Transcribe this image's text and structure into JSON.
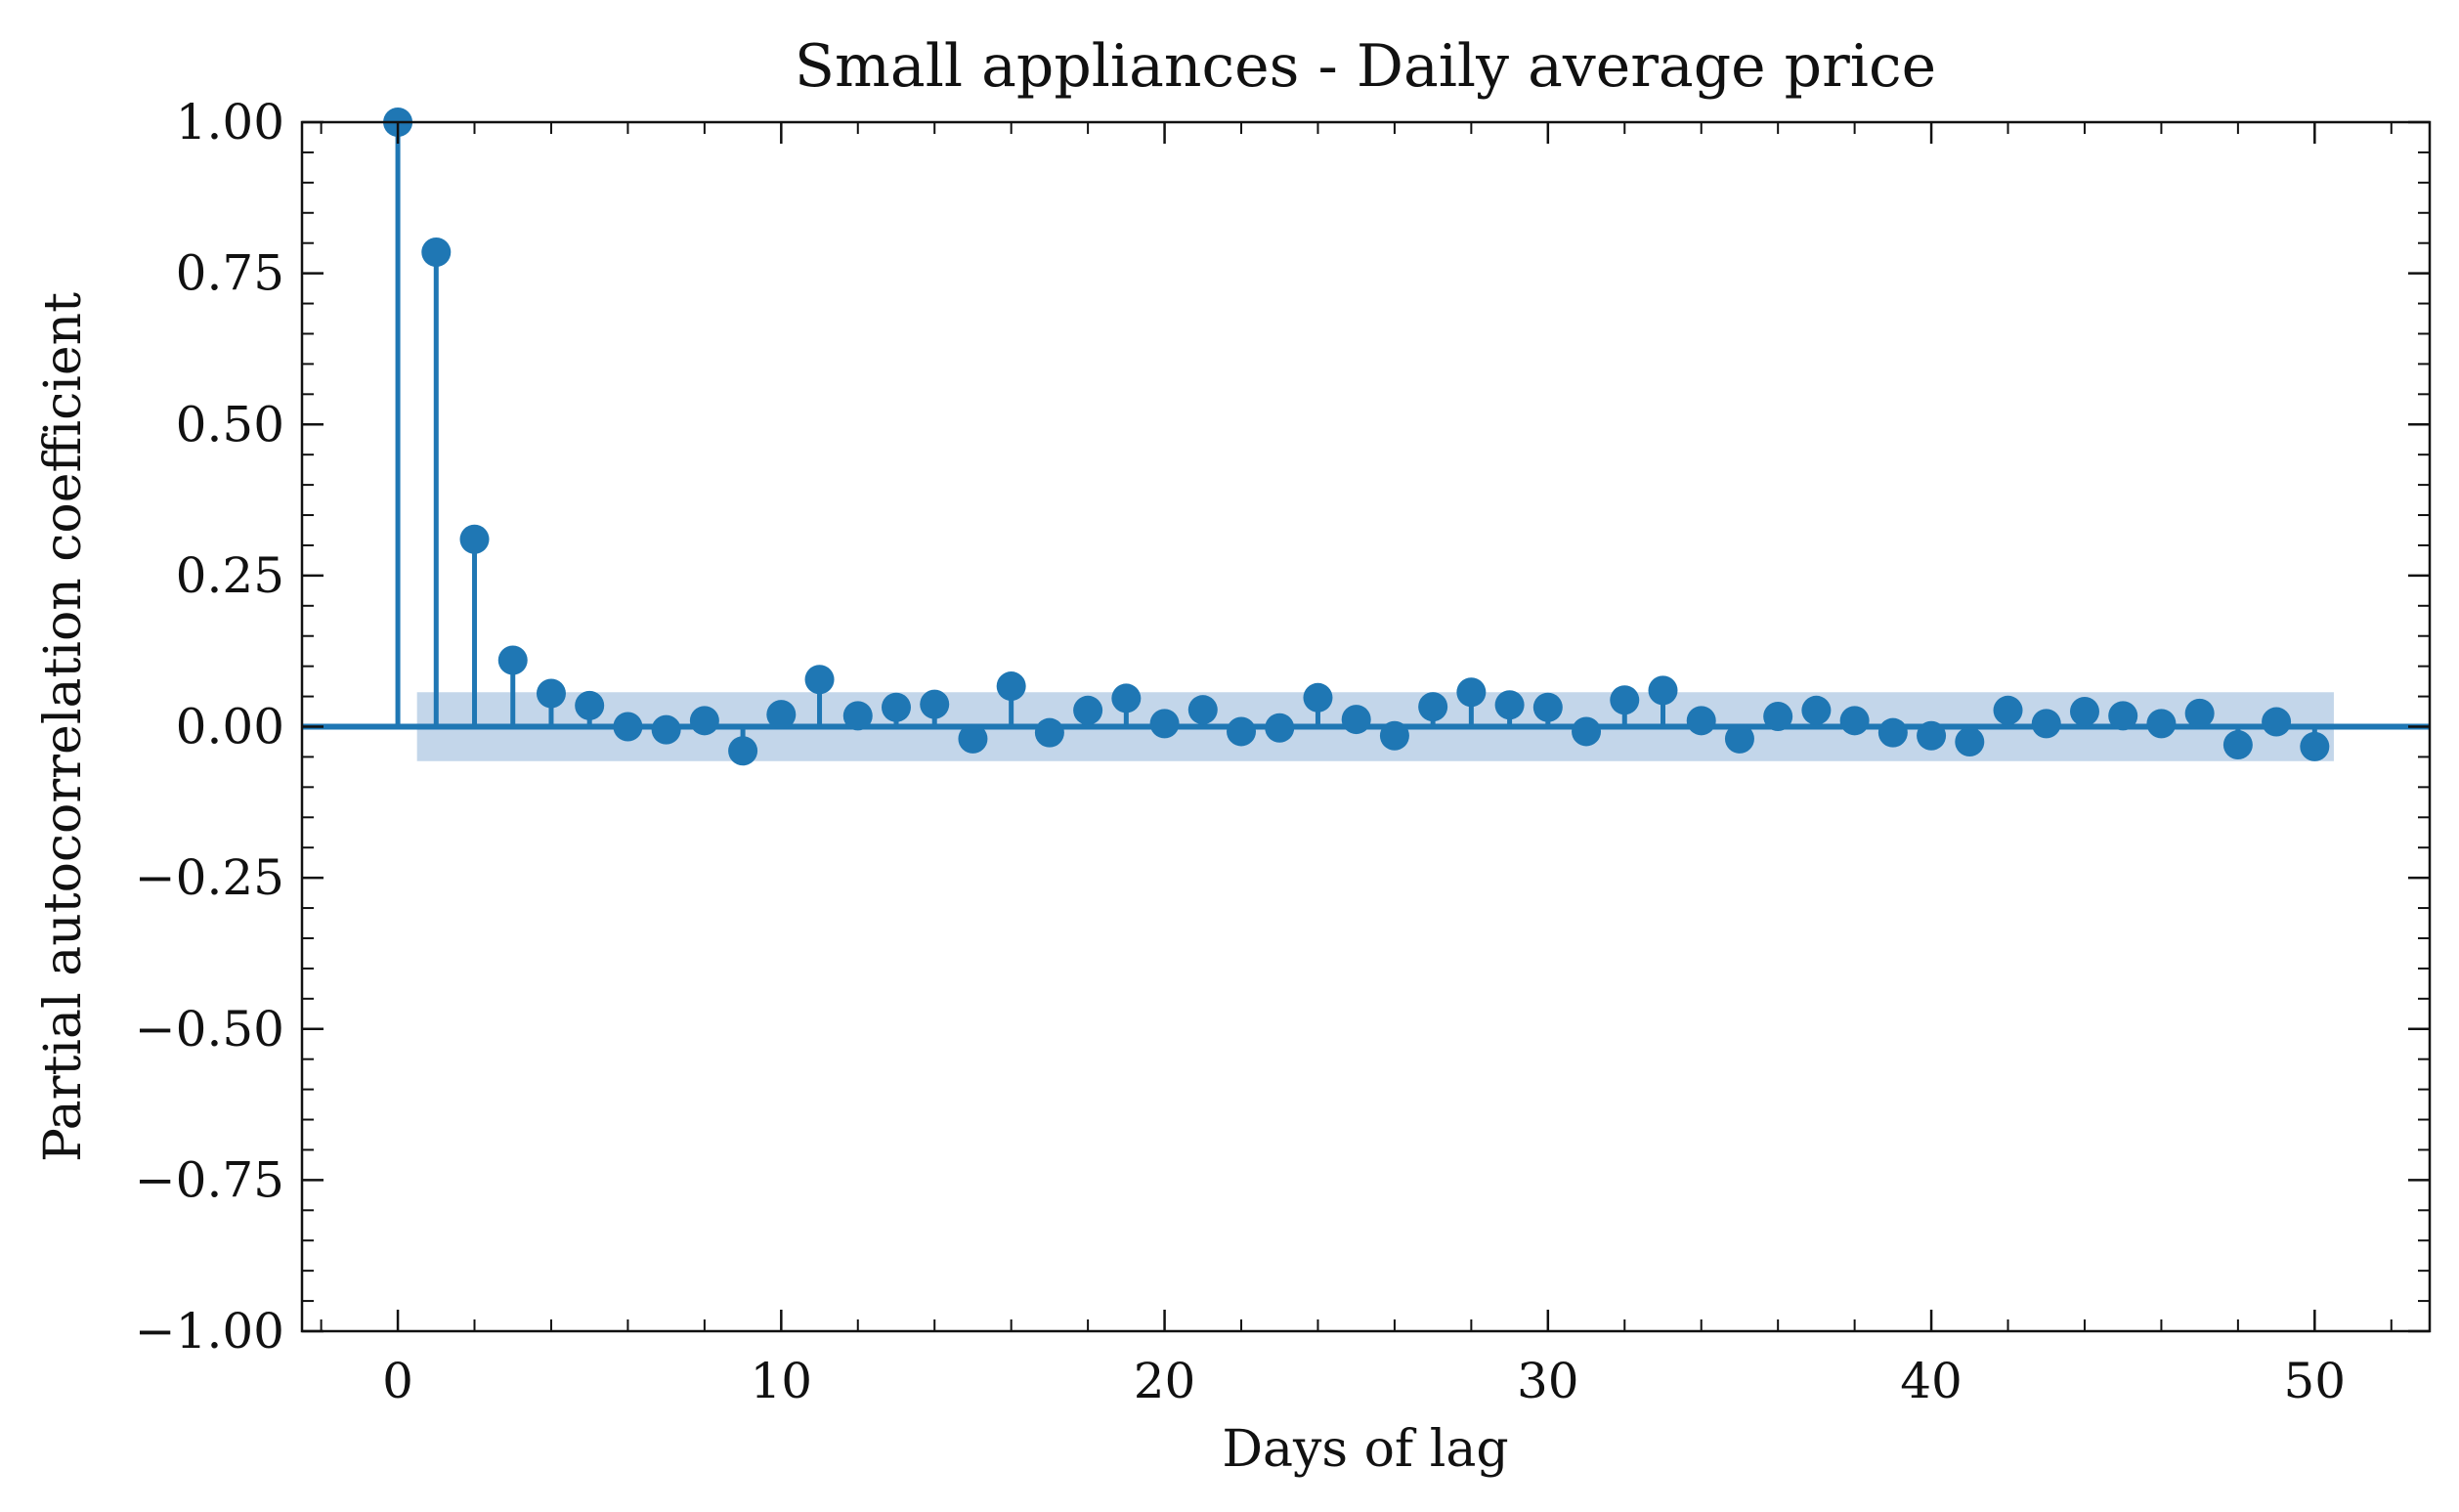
{
  "chart_data": {
    "type": "scatter",
    "subtype": "stem",
    "title": "Small appliances - Daily average price",
    "xlabel": "Days of lag",
    "ylabel": "Partial autocorrelation coefficient",
    "xlim": [
      -2.5,
      53
    ],
    "ylim": [
      -1.0,
      1.0
    ],
    "x_ticks": [
      0,
      10,
      20,
      30,
      40,
      50
    ],
    "x_tick_labels": [
      "0",
      "10",
      "20",
      "30",
      "40",
      "50"
    ],
    "y_ticks": [
      -1.0,
      -0.75,
      -0.5,
      -0.25,
      0.0,
      0.25,
      0.5,
      0.75,
      1.0
    ],
    "y_tick_labels": [
      "−1.00",
      "−0.75",
      "−0.50",
      "−0.25",
      "0.00",
      "0.25",
      "0.50",
      "0.75",
      "1.00"
    ],
    "grid": false,
    "confidence_band": {
      "x_range": [
        0.5,
        50.5
      ],
      "lower": -0.057,
      "upper": 0.057
    },
    "series": [
      {
        "x": [
          0,
          1,
          2,
          3,
          4,
          5,
          6,
          7,
          8,
          9,
          10,
          11,
          12,
          13,
          14,
          15,
          16,
          17,
          18,
          19,
          20,
          21,
          22,
          23,
          24,
          25,
          26,
          27,
          28,
          29,
          30,
          31,
          32,
          33,
          34,
          35,
          36,
          37,
          38,
          39,
          40,
          41,
          42,
          43,
          44,
          45,
          46,
          47,
          48,
          49,
          50
        ],
        "values": [
          1.0,
          0.785,
          0.31,
          0.11,
          0.055,
          0.035,
          0.0,
          -0.005,
          0.01,
          -0.04,
          0.02,
          0.078,
          0.018,
          0.032,
          0.037,
          -0.02,
          0.067,
          -0.01,
          0.027,
          0.047,
          0.005,
          0.028,
          -0.008,
          -0.002,
          0.048,
          0.012,
          -0.015,
          0.033,
          0.057,
          0.036,
          0.032,
          -0.008,
          0.044,
          0.06,
          0.01,
          -0.02,
          0.017,
          0.027,
          0.01,
          -0.01,
          -0.015,
          -0.025,
          0.027,
          0.005,
          0.025,
          0.018,
          0.005,
          0.022,
          -0.03,
          0.008,
          -0.033
        ]
      }
    ],
    "colors": {
      "marker": "#1f77b4",
      "band": "#c3d6ea",
      "axes": "#111111"
    }
  }
}
